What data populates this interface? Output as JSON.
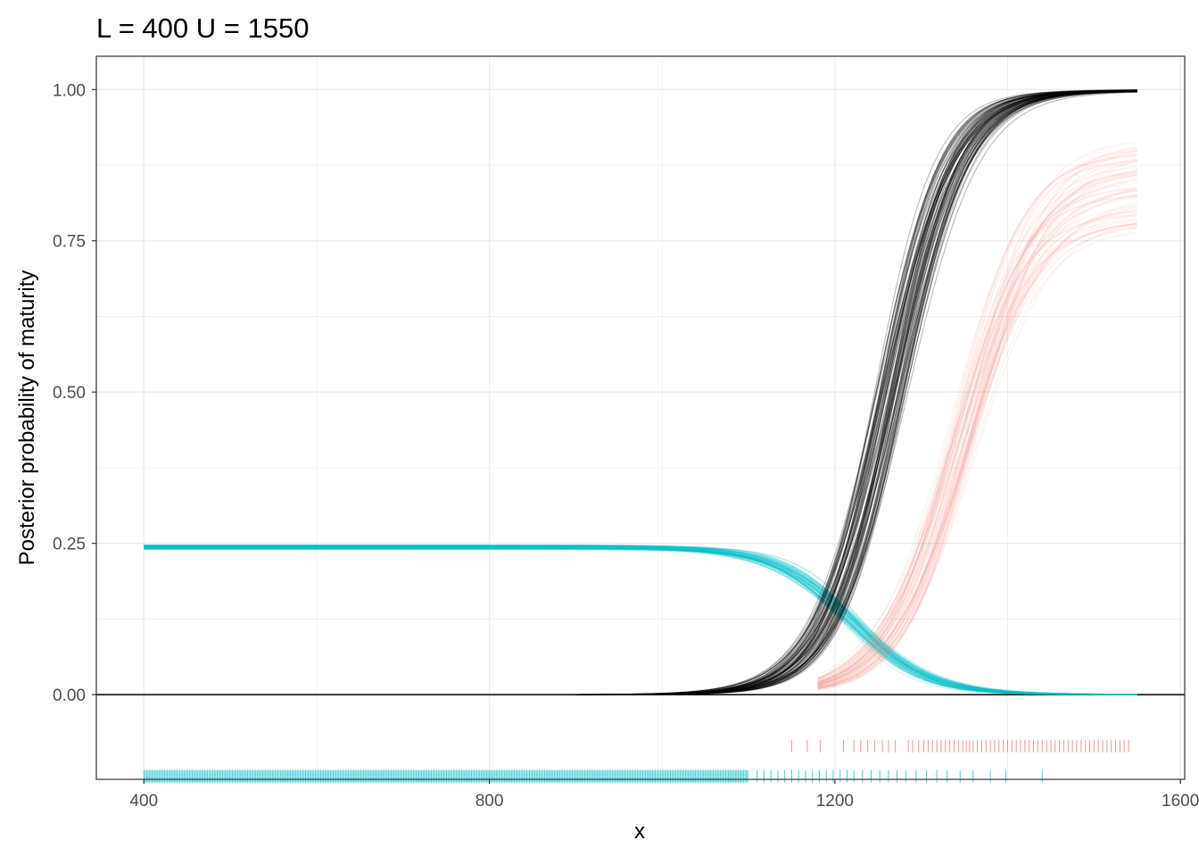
{
  "chart_data": {
    "type": "line",
    "title": "L = 400 U = 1550",
    "xlabel": "x",
    "ylabel": "Posterior probability of maturity",
    "xlim": [
      345,
      1605
    ],
    "ylim": [
      -0.14,
      1.055
    ],
    "x_ticks": [
      400,
      800,
      1200,
      1600
    ],
    "x_tick_labels": [
      "400",
      "800",
      "1200",
      "1600"
    ],
    "y_ticks": [
      0.0,
      0.25,
      0.5,
      0.75,
      1.0
    ],
    "y_tick_labels": [
      "0.00",
      "0.25",
      "0.50",
      "0.75",
      "1.00"
    ],
    "grid": true,
    "legend": "none",
    "x_range": [
      400,
      1550
    ],
    "colors": {
      "black": "#000000",
      "red": "#F8766D",
      "cyan": "#00BFC4",
      "grid": "#ebebeb"
    },
    "series": [
      {
        "color": "#000000",
        "kind": "logistic",
        "x_start": 900,
        "midpoint_range": [
          1245,
          1285
        ],
        "scale_range": [
          34,
          42
        ],
        "upper_range": [
          0.997,
          1.0
        ],
        "n_draws": 80
      },
      {
        "color": "#F8766D",
        "kind": "logistic",
        "x_start": 1180,
        "midpoint_range": [
          1330,
          1365
        ],
        "scale_range": [
          38,
          48
        ],
        "upper_range": [
          0.77,
          0.92
        ],
        "n_draws": 60
      },
      {
        "color": "#00BFC4",
        "kind": "declining",
        "plateau_range": [
          0.24,
          0.247
        ],
        "midpoint_range": [
          1205,
          1235
        ],
        "scale_range": [
          38,
          50
        ],
        "n_draws": 60
      }
    ],
    "rugs": [
      {
        "color": "#F8766D",
        "y": -0.085,
        "x": [
          1150,
          1168,
          1183,
          1210,
          1222,
          1230,
          1238,
          1246,
          1255,
          1262,
          1270,
          1285,
          1290,
          1297,
          1303,
          1308,
          1313,
          1318,
          1323,
          1328,
          1333,
          1338,
          1343,
          1348,
          1352,
          1356,
          1360,
          1365,
          1370,
          1375,
          1380,
          1385,
          1390,
          1395,
          1400,
          1405,
          1410,
          1415,
          1420,
          1425,
          1430,
          1435,
          1440,
          1445,
          1450,
          1455,
          1460,
          1465,
          1470,
          1475,
          1480,
          1485,
          1490,
          1495,
          1500,
          1505,
          1510,
          1515,
          1520,
          1525,
          1530,
          1535,
          1540
        ]
      },
      {
        "color": "#00BFC4",
        "y": -0.135,
        "x_dense_range": [
          400,
          1100
        ],
        "x_sparse": [
          1110,
          1118,
          1126,
          1134,
          1142,
          1150,
          1158,
          1166,
          1174,
          1182,
          1190,
          1198,
          1206,
          1214,
          1222,
          1232,
          1242,
          1252,
          1262,
          1272,
          1282,
          1294,
          1306,
          1318,
          1330,
          1345,
          1360,
          1380,
          1398,
          1440
        ]
      }
    ]
  }
}
